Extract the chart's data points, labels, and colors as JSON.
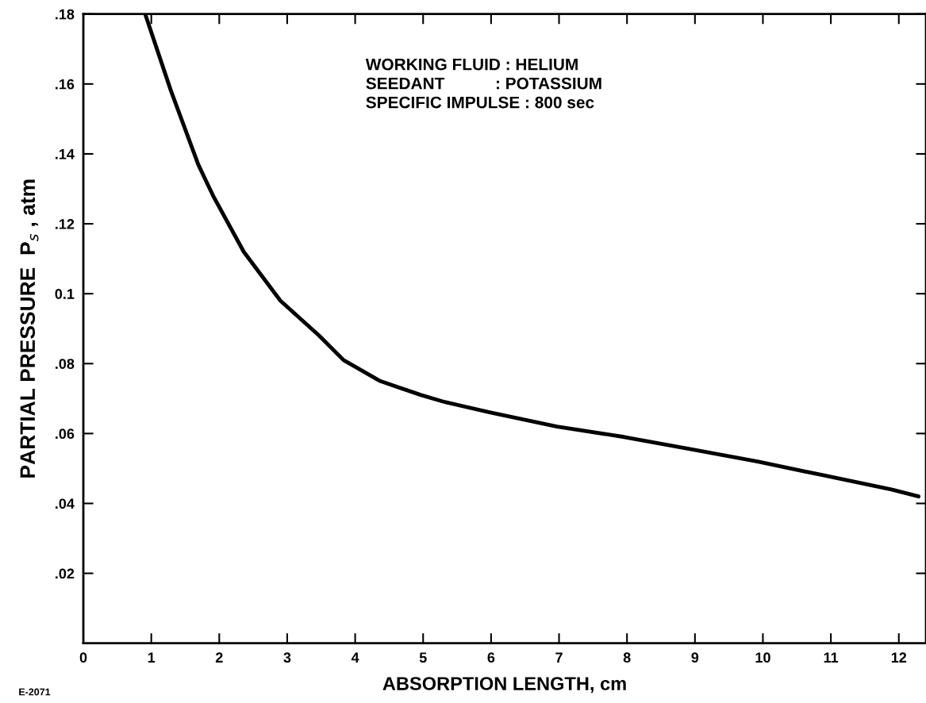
{
  "chart_data": {
    "type": "line",
    "xlabel": "ABSORPTION LENGTH, cm",
    "ylabel": "PARTIAL PRESSURE  P$_{s}$ , atm",
    "annotations": [
      "WORKING FLUID : HELIUM\nSEEDANT           : POTASSIUM\nSPECIFIC IMPULSE : 800 sec",
      "E-2071"
    ],
    "x": [
      0.91,
      1.29,
      1.69,
      1.91,
      2.36,
      2.9,
      3.47,
      3.83,
      4.37,
      4.97,
      5.32,
      5.99,
      6.97,
      7.96,
      8.94,
      9.92,
      10.9,
      11.89,
      12.29
    ],
    "series": [
      {
        "color": "#000000",
        "values": [
          0.18,
          0.158,
          0.137,
          0.128,
          0.112,
          0.098,
          0.088,
          0.081,
          0.075,
          0.071,
          0.069,
          0.066,
          0.062,
          0.059,
          0.0555,
          0.052,
          0.048,
          0.044,
          0.042
        ]
      }
    ],
    "xlim": [
      0,
      12.4
    ],
    "ylim": [
      0,
      0.18
    ],
    "xticks": [
      0,
      1,
      2,
      3,
      4,
      5,
      6,
      7,
      8,
      9,
      10,
      11,
      12
    ],
    "yticks": [
      {
        "value": 0.02,
        "label": ".02"
      },
      {
        "value": 0.04,
        "label": ".04"
      },
      {
        "value": 0.06,
        "label": ".06"
      },
      {
        "value": 0.08,
        "label": ".08"
      },
      {
        "value": 0.1,
        "label": "0.1"
      },
      {
        "value": 0.12,
        "label": ".12"
      },
      {
        "value": 0.14,
        "label": ".14"
      },
      {
        "value": 0.16,
        "label": ".16"
      },
      {
        "value": 0.18,
        "label": ".18"
      }
    ],
    "grid": false,
    "legend": false,
    "marker": "none",
    "line_style": "solid"
  }
}
